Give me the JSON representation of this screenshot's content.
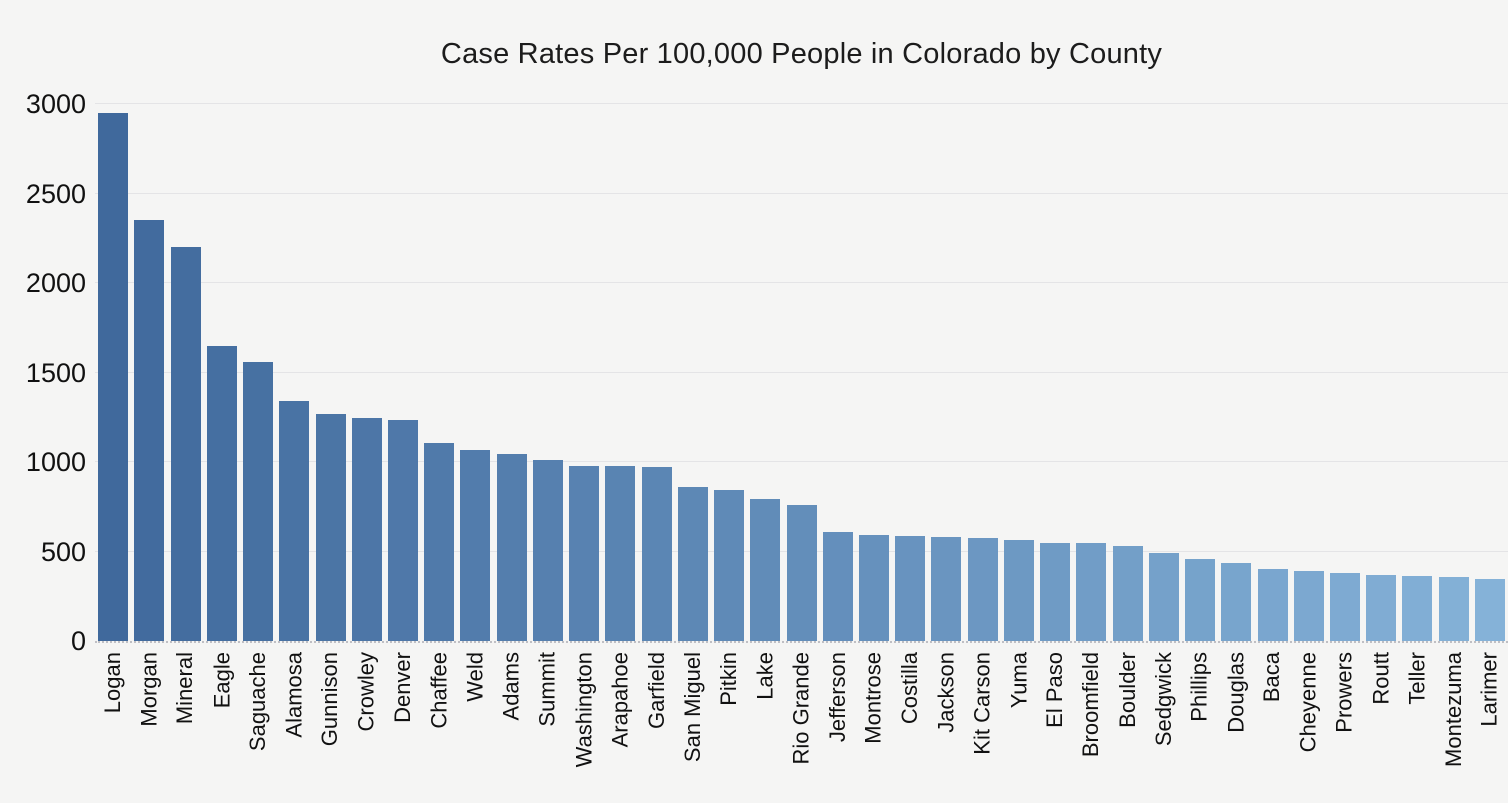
{
  "title": "Case Rates Per 100,000 People in Colorado by County",
  "colors": {
    "background": "#f5f5f4",
    "bar_dark": "#40699c",
    "bar_light": "#85b2d8",
    "gridline": "#e4e4e6",
    "baseline_dots": "#bfbfc4",
    "text": "#111111"
  },
  "chart_data": {
    "type": "bar",
    "title": "Case Rates Per 100,000 People in Colorado by County",
    "xlabel": "",
    "ylabel": "",
    "ylim": [
      0,
      3000
    ],
    "yticks": [
      0,
      500,
      1000,
      1500,
      2000,
      2500,
      3000
    ],
    "grid": "horizontal",
    "legend": "none",
    "sort": "descending",
    "bar_color_scale": {
      "mode": "linear-by-rank",
      "first_bar": "#40699c",
      "last_bar": "#85b2d8"
    },
    "categories": [
      "Logan",
      "Morgan",
      "Mineral",
      "Eagle",
      "Saguache",
      "Alamosa",
      "Gunnison",
      "Crowley",
      "Denver",
      "Chaffee",
      "Weld",
      "Adams",
      "Summit",
      "Washington",
      "Arapahoe",
      "Garfield",
      "San Miguel",
      "Pitkin",
      "Lake",
      "Rio Grande",
      "Jefferson",
      "Montrose",
      "Costilla",
      "Jackson",
      "Kit Carson",
      "Yuma",
      "El Paso",
      "Broomfield",
      "Boulder",
      "Sedgwick",
      "Phillips",
      "Douglas",
      "Baca",
      "Cheyenne",
      "Prowers",
      "Routt",
      "Teller",
      "Montezuma",
      "Larimer"
    ],
    "values": [
      2950,
      2350,
      2200,
      1650,
      1560,
      1340,
      1270,
      1245,
      1235,
      1105,
      1065,
      1045,
      1010,
      980,
      975,
      970,
      860,
      845,
      795,
      760,
      610,
      595,
      588,
      582,
      578,
      565,
      548,
      545,
      530,
      490,
      460,
      435,
      405,
      390,
      380,
      370,
      362,
      360,
      345
    ]
  }
}
